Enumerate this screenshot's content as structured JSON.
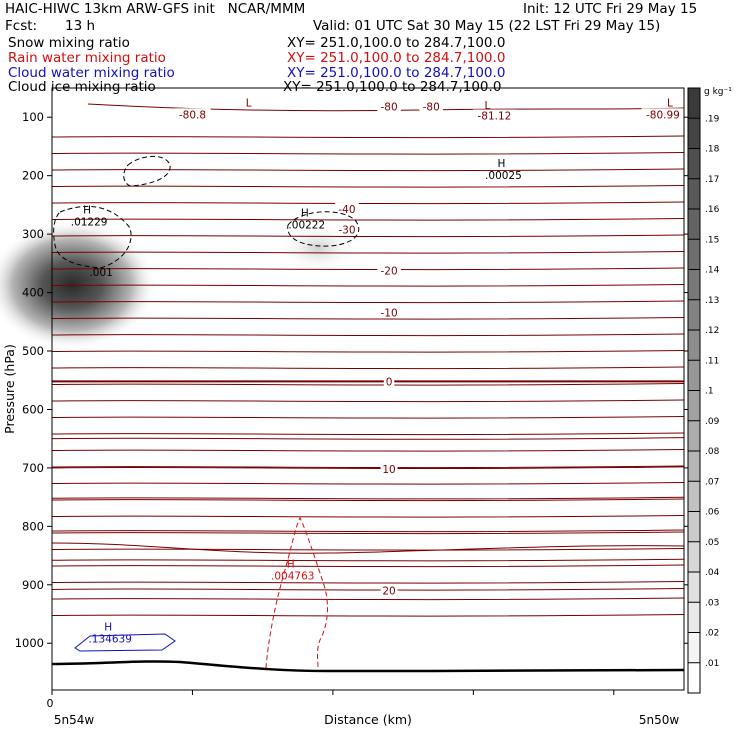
{
  "header": {
    "title_left": "HAIC-HIWC 13km ARW-GFS init   NCAR/MMM",
    "init": "Init: 12 UTC Fri 29 May 15",
    "fcst_label": "Fcst:",
    "fcst_value": "13 h",
    "valid": "Valid: 01 UTC Sat 30 May 15 (22 LST Fri 29 May 15)"
  },
  "legend": [
    {
      "label": "Snow mixing ratio",
      "xy": "XY= 251.0,100.0 to 284.7,100.0",
      "color": "#000000"
    },
    {
      "label": "Rain water mixing ratio",
      "xy": "XY= 251.0,100.0 to 284.7,100.0",
      "color": "#d01010"
    },
    {
      "label": "Cloud water mixing ratio",
      "xy": "XY= 251.0,100.0 to 284.7,100.0",
      "color": "#1010c0"
    },
    {
      "label": "Cloud ice mixing ratio",
      "xy": "XY= 251.0,100.0 to 284.7,100.0",
      "color": "#000000"
    }
  ],
  "colorbar": {
    "unit": "g kg⁻¹",
    "ticks": [
      ".19",
      ".18",
      ".17",
      ".16",
      ".15",
      ".14",
      ".13",
      ".12",
      ".11",
      ".1",
      ".09",
      ".08",
      ".07",
      ".06",
      ".05",
      ".04",
      ".03",
      ".02",
      ".01"
    ]
  },
  "chart_data": {
    "type": "heatmap",
    "ylabel": "Pressure (hPa)",
    "xlabel": "Distance (km)",
    "x_start_label": "5n54w",
    "x_end_label": "5n50w",
    "x_origin_tick": "0",
    "yticks": [
      100,
      200,
      300,
      400,
      500,
      600,
      700,
      800,
      900,
      1000
    ],
    "ylim": [
      1080,
      50
    ],
    "xlim": [
      0,
      450
    ],
    "isotherm_labels": [
      {
        "text": "-80.8",
        "x": 100,
        "p": 95
      },
      {
        "text": "-80",
        "x": 240,
        "p": 82
      },
      {
        "text": "-80",
        "x": 270,
        "p": 82
      },
      {
        "text": "-81.12",
        "x": 315,
        "p": 97
      },
      {
        "text": "-80.99",
        "x": 435,
        "p": 95
      },
      {
        "text": "-40",
        "x": 210,
        "p": 257
      },
      {
        "text": "-30",
        "x": 210,
        "p": 292
      },
      {
        "text": "-20",
        "x": 240,
        "p": 362
      },
      {
        "text": "-10",
        "x": 240,
        "p": 434
      },
      {
        "text": "0",
        "x": 240,
        "p": 552
      },
      {
        "text": "10",
        "x": 240,
        "p": 702
      },
      {
        "text": "20",
        "x": 240,
        "p": 910
      }
    ],
    "extrema": [
      {
        "type": "L",
        "value": "",
        "x": 140,
        "p": 82,
        "color": "#7a0000"
      },
      {
        "type": "L",
        "value": "",
        "x": 310,
        "p": 86,
        "color": "#7a0000"
      },
      {
        "type": "L",
        "value": "",
        "x": 440,
        "p": 82,
        "color": "#7a0000"
      },
      {
        "type": "H",
        "value": ".00025",
        "x": 320,
        "p": 185,
        "color": "#000000"
      },
      {
        "type": "H",
        "value": ".01229",
        "x": 25,
        "p": 265,
        "color": "#000000"
      },
      {
        "type": "H",
        "value": ".00222",
        "x": 180,
        "p": 270,
        "color": "#000000"
      },
      {
        "type": "H",
        "value": ".004763",
        "x": 170,
        "p": 870,
        "color": "#d01010"
      },
      {
        "type": "H",
        "value": ".134639",
        "x": 40,
        "p": 978,
        "color": "#1010c0"
      }
    ],
    "snow_maxima": [
      {
        "x": 25,
        "p": 350,
        "max": 0.17
      },
      {
        "x": 185,
        "p": 285,
        "max": 0.03
      }
    ],
    "labels": [
      {
        "text": ".001",
        "x": 35,
        "p": 365
      }
    ]
  }
}
